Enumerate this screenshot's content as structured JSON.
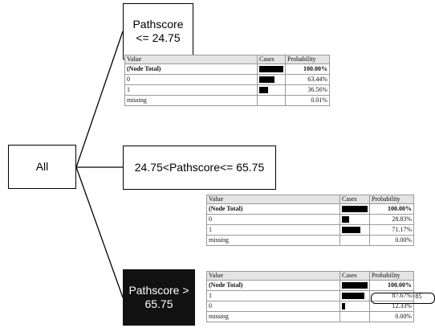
{
  "nodes": {
    "root": {
      "label": "All"
    },
    "low": {
      "label": "Pathscore\n<= 24.75"
    },
    "mid": {
      "label": "24.75<Pathscore<= 65.75"
    },
    "high": {
      "label": "Pathscore >\n65.75"
    }
  },
  "table_headers": {
    "value": "Value",
    "cases": "Cases",
    "probability": "Probability"
  },
  "tables": {
    "low": {
      "rows": [
        {
          "value": "(Node Total)",
          "cases_fraction": 1.0,
          "probability": "100.00%"
        },
        {
          "value": "0",
          "cases_fraction": 0.6344,
          "probability": "63.44%"
        },
        {
          "value": "1",
          "cases_fraction": 0.3656,
          "probability": "36.56%"
        },
        {
          "value": "missing",
          "cases_fraction": 0.0001,
          "probability": "0.01%"
        }
      ]
    },
    "mid": {
      "rows": [
        {
          "value": "(Node Total)",
          "cases_fraction": 1.0,
          "probability": "100.00%"
        },
        {
          "value": "0",
          "cases_fraction": 0.2883,
          "probability": "28.83%"
        },
        {
          "value": "1",
          "cases_fraction": 0.7117,
          "probability": "71.17%"
        },
        {
          "value": "missing",
          "cases_fraction": 0.0,
          "probability": "0.00%"
        }
      ]
    },
    "high": {
      "rows": [
        {
          "value": "(Node Total)",
          "cases_fraction": 1.0,
          "probability": "100.00%"
        },
        {
          "value": "1",
          "cases_fraction": 0.8767,
          "probability": "87.67%"
        },
        {
          "value": "0",
          "cases_fraction": 0.1233,
          "probability": "12.33%"
        },
        {
          "value": "missing",
          "cases_fraction": 0.0,
          "probability": "0.00%"
        }
      ]
    }
  },
  "callout": {
    "label": ">85"
  }
}
